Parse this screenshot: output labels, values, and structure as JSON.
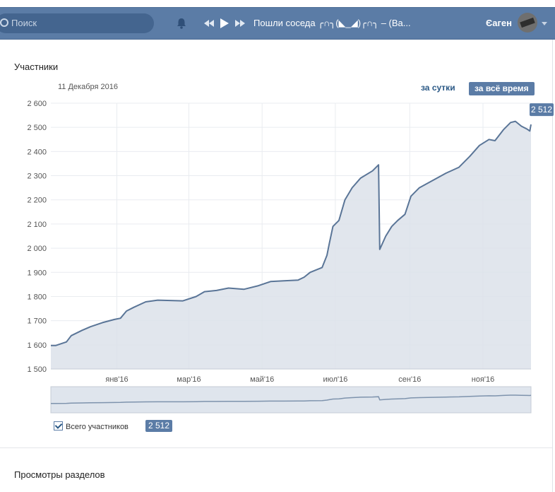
{
  "header": {
    "search_placeholder": "Поиск",
    "now_playing": "Пошли соседа ╭∩╮(◣_◢)╭∩╮ – (Ва...",
    "user_name": "Єаген"
  },
  "section": {
    "title": "Участники",
    "next_title": "Просмотры разделов"
  },
  "toolbar": {
    "date": "11 Декабря 2016",
    "per_day": "за сутки",
    "all_time": "за всё время"
  },
  "legend": {
    "label": "Всего участников",
    "value": "2 512"
  },
  "colors": {
    "accent": "#5b7ca6",
    "line": "#5a7597",
    "fill": "#dce2ea"
  },
  "chart_data": {
    "type": "area",
    "title": "",
    "xlabel": "",
    "ylabel": "",
    "ylim": [
      1500,
      2600
    ],
    "yticks": [
      "1 500",
      "1 600",
      "1 700",
      "1 800",
      "1 900",
      "2 000",
      "2 100",
      "2 200",
      "2 300",
      "2 400",
      "2 500",
      "2 600"
    ],
    "x_range": [
      "2015-11-07",
      "2016-12-11"
    ],
    "xticks": [
      {
        "date": "2016-01-01",
        "label": "янв'16"
      },
      {
        "date": "2016-03-01",
        "label": "мар'16"
      },
      {
        "date": "2016-05-01",
        "label": "май'16"
      },
      {
        "date": "2016-07-01",
        "label": "июл'16"
      },
      {
        "date": "2016-09-01",
        "label": "сен'16"
      },
      {
        "date": "2016-11-01",
        "label": "ноя'16"
      }
    ],
    "last_value_label": "2 512",
    "grid": true,
    "series": [
      {
        "name": "Всего участников",
        "points": [
          [
            "2015-11-07",
            1597
          ],
          [
            "2015-11-11",
            1597
          ],
          [
            "2015-11-20",
            1612
          ],
          [
            "2015-11-24",
            1638
          ],
          [
            "2015-12-03",
            1660
          ],
          [
            "2015-12-10",
            1675
          ],
          [
            "2015-12-20",
            1692
          ],
          [
            "2015-12-30",
            1705
          ],
          [
            "2016-01-04",
            1710
          ],
          [
            "2016-01-09",
            1740
          ],
          [
            "2016-01-15",
            1755
          ],
          [
            "2016-01-25",
            1778
          ],
          [
            "2016-02-04",
            1785
          ],
          [
            "2016-02-25",
            1782
          ],
          [
            "2016-03-07",
            1800
          ],
          [
            "2016-03-14",
            1820
          ],
          [
            "2016-03-24",
            1825
          ],
          [
            "2016-04-03",
            1835
          ],
          [
            "2016-04-16",
            1830
          ],
          [
            "2016-04-28",
            1845
          ],
          [
            "2016-05-08",
            1862
          ],
          [
            "2016-05-19",
            1865
          ],
          [
            "2016-05-31",
            1868
          ],
          [
            "2016-06-05",
            1880
          ],
          [
            "2016-06-10",
            1900
          ],
          [
            "2016-06-20",
            1920
          ],
          [
            "2016-06-24",
            1970
          ],
          [
            "2016-06-26",
            2020
          ],
          [
            "2016-06-29",
            2090
          ],
          [
            "2016-07-04",
            2115
          ],
          [
            "2016-07-09",
            2200
          ],
          [
            "2016-07-15",
            2250
          ],
          [
            "2016-07-22",
            2290
          ],
          [
            "2016-08-01",
            2320
          ],
          [
            "2016-08-06",
            2345
          ],
          [
            "2016-08-07",
            1995
          ],
          [
            "2016-08-12",
            2050
          ],
          [
            "2016-08-17",
            2090
          ],
          [
            "2016-08-22",
            2115
          ],
          [
            "2016-08-28",
            2140
          ],
          [
            "2016-09-02",
            2215
          ],
          [
            "2016-09-09",
            2250
          ],
          [
            "2016-09-20",
            2280
          ],
          [
            "2016-10-01",
            2310
          ],
          [
            "2016-10-12",
            2335
          ],
          [
            "2016-10-21",
            2380
          ],
          [
            "2016-10-29",
            2425
          ],
          [
            "2016-11-06",
            2450
          ],
          [
            "2016-11-11",
            2445
          ],
          [
            "2016-11-18",
            2490
          ],
          [
            "2016-11-24",
            2520
          ],
          [
            "2016-11-28",
            2525
          ],
          [
            "2016-12-03",
            2505
          ],
          [
            "2016-12-08",
            2492
          ],
          [
            "2016-12-10",
            2485
          ],
          [
            "2016-12-11",
            2512
          ]
        ]
      }
    ]
  }
}
